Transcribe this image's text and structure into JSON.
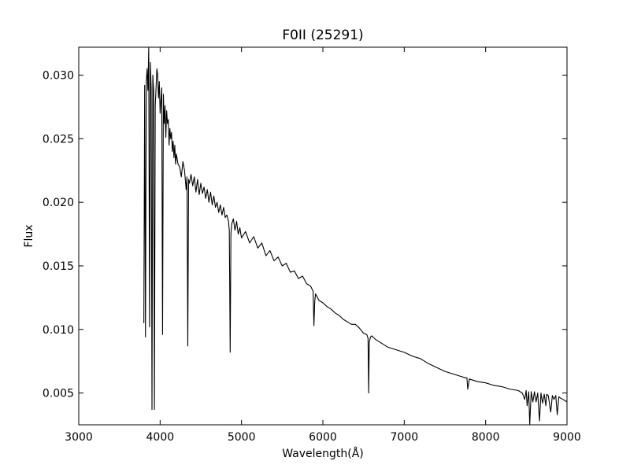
{
  "chart_data": {
    "type": "line",
    "title": "F0II (25291)",
    "xlabel": "Wavelength(Å)",
    "ylabel": "Flux",
    "xlim": [
      3000,
      9000
    ],
    "ylim": [
      0.0025,
      0.0322
    ],
    "grid": false,
    "x_ticks": [
      3000,
      4000,
      5000,
      6000,
      7000,
      8000,
      9000
    ],
    "x_tick_labels": [
      "3000",
      "4000",
      "5000",
      "6000",
      "7000",
      "8000",
      "9000"
    ],
    "y_ticks": [
      0.005,
      0.01,
      0.015,
      0.02,
      0.025,
      0.03
    ],
    "y_tick_labels": [
      "0.005",
      "0.010",
      "0.015",
      "0.020",
      "0.025",
      "0.030"
    ],
    "series": [
      {
        "color": "#000000",
        "x": [
          3800,
          3810,
          3820,
          3830,
          3840,
          3850,
          3860,
          3870,
          3880,
          3890,
          3900,
          3910,
          3920,
          3930,
          3940,
          3950,
          3960,
          3970,
          3980,
          3990,
          4000,
          4010,
          4020,
          4030,
          4040,
          4050,
          4060,
          4070,
          4080,
          4090,
          4100,
          4110,
          4120,
          4130,
          4140,
          4150,
          4160,
          4170,
          4180,
          4190,
          4200,
          4220,
          4240,
          4260,
          4280,
          4300,
          4320,
          4330,
          4340,
          4350,
          4360,
          4380,
          4400,
          4420,
          4440,
          4460,
          4480,
          4500,
          4520,
          4540,
          4560,
          4580,
          4600,
          4620,
          4640,
          4660,
          4680,
          4700,
          4720,
          4740,
          4760,
          4780,
          4800,
          4820,
          4840,
          4850,
          4861,
          4870,
          4880,
          4900,
          4920,
          4940,
          4960,
          4980,
          5000,
          5050,
          5100,
          5150,
          5200,
          5250,
          5300,
          5350,
          5400,
          5450,
          5500,
          5550,
          5600,
          5650,
          5700,
          5750,
          5800,
          5850,
          5880,
          5890,
          5900,
          5910,
          5950,
          6000,
          6050,
          6100,
          6150,
          6200,
          6250,
          6300,
          6350,
          6400,
          6450,
          6500,
          6540,
          6555,
          6563,
          6570,
          6585,
          6600,
          6650,
          6700,
          6750,
          6800,
          6850,
          6900,
          6950,
          7000,
          7100,
          7200,
          7300,
          7400,
          7500,
          7600,
          7700,
          7750,
          7770,
          7780,
          7800,
          7900,
          8000,
          8100,
          8200,
          8300,
          8400,
          8450,
          8480,
          8498,
          8510,
          8530,
          8542,
          8560,
          8580,
          8600,
          8620,
          8640,
          8662,
          8680,
          8700,
          8720,
          8740,
          8750,
          8770,
          8800,
          8820,
          8840,
          8862,
          8880,
          8900,
          8920,
          8950,
          9000
        ],
        "y": [
          0.0105,
          0.0292,
          0.0094,
          0.0295,
          0.0305,
          0.0288,
          0.0322,
          0.0102,
          0.031,
          0.029,
          0.0037,
          0.03,
          0.0288,
          0.0037,
          0.0276,
          0.029,
          0.0305,
          0.03,
          0.0282,
          0.0295,
          0.027,
          0.028,
          0.029,
          0.0096,
          0.0285,
          0.0262,
          0.0276,
          0.0251,
          0.0272,
          0.0262,
          0.0265,
          0.0245,
          0.0258,
          0.025,
          0.0255,
          0.024,
          0.0248,
          0.0235,
          0.0245,
          0.023,
          0.0238,
          0.023,
          0.0228,
          0.022,
          0.0232,
          0.0225,
          0.021,
          0.022,
          0.0087,
          0.0218,
          0.0215,
          0.0222,
          0.0213,
          0.022,
          0.0208,
          0.0218,
          0.0206,
          0.0215,
          0.0207,
          0.0212,
          0.0203,
          0.021,
          0.02,
          0.0208,
          0.0198,
          0.0205,
          0.0196,
          0.02,
          0.0192,
          0.0198,
          0.019,
          0.0196,
          0.0188,
          0.019,
          0.0185,
          0.0178,
          0.0082,
          0.0175,
          0.0183,
          0.0187,
          0.0178,
          0.0185,
          0.0175,
          0.018,
          0.0172,
          0.0177,
          0.0168,
          0.0173,
          0.0164,
          0.0168,
          0.0158,
          0.0162,
          0.0154,
          0.0157,
          0.015,
          0.0152,
          0.0145,
          0.0146,
          0.014,
          0.0142,
          0.0136,
          0.0134,
          0.013,
          0.0103,
          0.0122,
          0.0128,
          0.0123,
          0.0121,
          0.0118,
          0.0116,
          0.0113,
          0.0111,
          0.0108,
          0.0106,
          0.0104,
          0.0104,
          0.0101,
          0.0097,
          0.0096,
          0.0093,
          0.005,
          0.009,
          0.0094,
          0.0095,
          0.0092,
          0.009,
          0.0088,
          0.0086,
          0.0085,
          0.0084,
          0.0083,
          0.0082,
          0.0079,
          0.0077,
          0.0073,
          0.007,
          0.0067,
          0.0065,
          0.0063,
          0.0062,
          0.0062,
          0.0053,
          0.0061,
          0.0059,
          0.0058,
          0.0056,
          0.0055,
          0.0053,
          0.0052,
          0.005,
          0.0045,
          0.0052,
          0.004,
          0.0051,
          0.0025,
          0.0051,
          0.0043,
          0.0051,
          0.0043,
          0.005,
          0.0028,
          0.005,
          0.0042,
          0.0049,
          0.004,
          0.0049,
          0.0048,
          0.0035,
          0.0048,
          0.0045,
          0.0048,
          0.0033,
          0.0047,
          0.0046,
          0.0045,
          0.0043
        ]
      }
    ]
  }
}
